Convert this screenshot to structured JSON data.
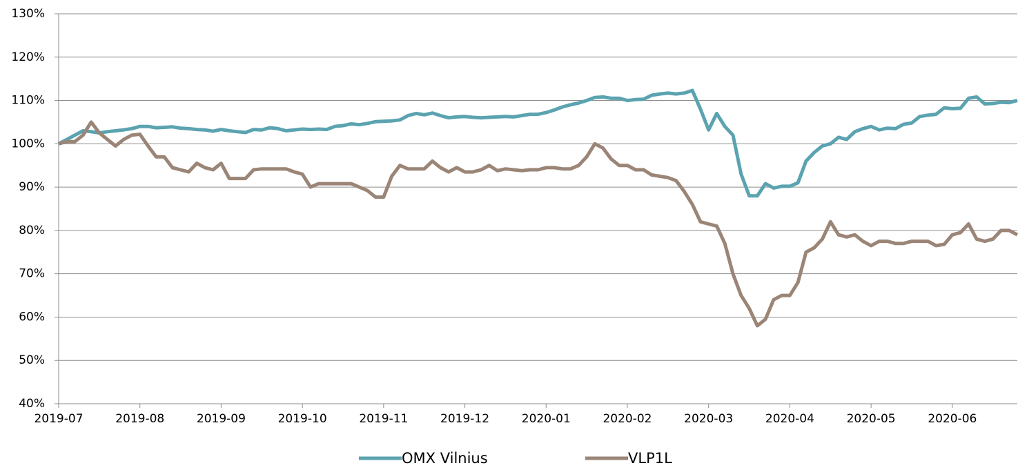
{
  "chart_data": {
    "type": "line",
    "categories": [
      "2019-07",
      null,
      null,
      null,
      null,
      null,
      null,
      null,
      null,
      null,
      "2019-08",
      null,
      null,
      null,
      null,
      null,
      null,
      null,
      null,
      null,
      "2019-09",
      null,
      null,
      null,
      null,
      null,
      null,
      null,
      null,
      null,
      "2019-10",
      null,
      null,
      null,
      null,
      null,
      null,
      null,
      null,
      null,
      "2019-11",
      null,
      null,
      null,
      null,
      null,
      null,
      null,
      null,
      null,
      "2019-12",
      null,
      null,
      null,
      null,
      null,
      null,
      null,
      null,
      null,
      "2020-01",
      null,
      null,
      null,
      null,
      null,
      null,
      null,
      null,
      null,
      "2020-02",
      null,
      null,
      null,
      null,
      null,
      null,
      null,
      null,
      null,
      "2020-03",
      null,
      null,
      null,
      null,
      null,
      null,
      null,
      null,
      null,
      "2020-04",
      null,
      null,
      null,
      null,
      null,
      null,
      null,
      null,
      null,
      "2020-05",
      null,
      null,
      null,
      null,
      null,
      null,
      null,
      null,
      null,
      "2020-06",
      null,
      null,
      null,
      null,
      null,
      null,
      null,
      null
    ],
    "series": [
      {
        "name": "OMX Vilnius",
        "color": "#5ba3b0",
        "values": [
          100,
          101,
          102,
          103,
          102.8,
          102.5,
          102.8,
          103,
          103.2,
          103.5,
          104,
          104,
          103.7,
          103.8,
          103.9,
          103.6,
          103.5,
          103.3,
          103.2,
          102.9,
          103.3,
          103,
          102.8,
          102.6,
          103.3,
          103.2,
          103.7,
          103.5,
          103,
          103.2,
          103.4,
          103.3,
          103.4,
          103.3,
          104,
          104.2,
          104.6,
          104.4,
          104.7,
          105.1,
          105.2,
          105.3,
          105.5,
          106.5,
          107,
          106.7,
          107.1,
          106.5,
          106,
          106.2,
          106.3,
          106.1,
          106,
          106.1,
          106.2,
          106.3,
          106.2,
          106.5,
          106.8,
          106.8,
          107.2,
          107.8,
          108.5,
          109,
          109.4,
          110,
          110.7,
          110.8,
          110.5,
          110.5,
          110,
          110.2,
          110.3,
          111.2,
          111.5,
          111.7,
          111.5,
          111.7,
          112.3,
          108,
          103.2,
          107,
          104,
          102,
          93,
          88,
          88,
          90.8,
          89.8,
          90.2,
          90.2,
          91,
          96,
          98,
          99.5,
          100,
          101.5,
          101,
          102.8,
          103.5,
          104,
          103.2,
          103.6,
          103.5,
          104.5,
          104.8,
          106.3,
          106.6,
          106.8,
          108.3,
          108.1,
          108.2,
          110.5,
          110.8,
          109.2,
          109.3,
          109.6,
          109.5,
          110
        ]
      },
      {
        "name": "VLP1L",
        "color": "#9b8577",
        "values": [
          100,
          100.5,
          100.5,
          102,
          105,
          102.5,
          101,
          99.5,
          101,
          102,
          102.2,
          99.5,
          97,
          97,
          94.5,
          94,
          93.5,
          95.5,
          94.5,
          94,
          95.5,
          92,
          92,
          92,
          94,
          94.2,
          94.2,
          94.2,
          94.2,
          93.5,
          93,
          90,
          90.8,
          90.8,
          90.8,
          90.8,
          90.8,
          90,
          89.2,
          87.7,
          87.7,
          92.5,
          95,
          94.2,
          94.2,
          94.2,
          96,
          94.5,
          93.5,
          94.5,
          93.5,
          93.5,
          94,
          95,
          93.8,
          94.2,
          94,
          93.8,
          94,
          94,
          94.5,
          94.5,
          94.2,
          94.2,
          95,
          97,
          100,
          99,
          96.5,
          95,
          95,
          94,
          94,
          92.8,
          92.5,
          92.2,
          91.5,
          89,
          86,
          82,
          81.5,
          81,
          77,
          70,
          65,
          62,
          58,
          59.5,
          64,
          65,
          65,
          68,
          75,
          76,
          78,
          82,
          79,
          78.5,
          79,
          77.5,
          76.5,
          77.5,
          77.5,
          77,
          77,
          77.5,
          77.5,
          77.5,
          76.5,
          76.8,
          79,
          79.5,
          81.5,
          78,
          77.5,
          78,
          80,
          80,
          79
        ]
      }
    ],
    "ylim": [
      40,
      130
    ],
    "yticks": [
      {
        "value": 40,
        "label": "40%"
      },
      {
        "value": 50,
        "label": "50%"
      },
      {
        "value": 60,
        "label": "60%"
      },
      {
        "value": 70,
        "label": "70%"
      },
      {
        "value": 80,
        "label": "80%"
      },
      {
        "value": 90,
        "label": "90%"
      },
      {
        "value": 100,
        "label": "100%"
      },
      {
        "value": 110,
        "label": "110%"
      },
      {
        "value": 120,
        "label": "120%"
      },
      {
        "value": 130,
        "label": "130%"
      }
    ],
    "grid": true,
    "legend": "bottom"
  }
}
